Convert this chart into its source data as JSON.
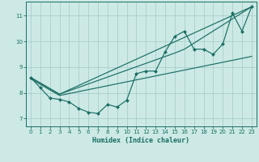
{
  "title": "",
  "xlabel": "Humidex (Indice chaleur)",
  "bg_color": "#cce9e5",
  "grid_color": "#aacfcb",
  "line_color": "#1a6e64",
  "xlim": [
    -0.5,
    23.5
  ],
  "ylim": [
    6.7,
    11.55
  ],
  "xticks": [
    0,
    1,
    2,
    3,
    4,
    5,
    6,
    7,
    8,
    9,
    10,
    11,
    12,
    13,
    14,
    15,
    16,
    17,
    18,
    19,
    20,
    21,
    22,
    23
  ],
  "yticks": [
    7,
    8,
    9,
    10,
    11
  ],
  "line_main": {
    "x": [
      0,
      1,
      2,
      3,
      4,
      5,
      6,
      7,
      8,
      9,
      10,
      11,
      12,
      13,
      14,
      15,
      16,
      17,
      18,
      19,
      20,
      21,
      22,
      23
    ],
    "y": [
      8.6,
      8.2,
      7.8,
      7.75,
      7.65,
      7.4,
      7.25,
      7.2,
      7.55,
      7.45,
      7.72,
      8.75,
      8.85,
      8.85,
      9.6,
      10.2,
      10.4,
      9.7,
      9.7,
      9.5,
      9.9,
      11.1,
      10.4,
      11.35
    ]
  },
  "line_straight1": {
    "x": [
      0,
      3,
      23
    ],
    "y": [
      8.6,
      7.95,
      11.35
    ]
  },
  "line_straight2": {
    "x": [
      0,
      3,
      15,
      16,
      23
    ],
    "y": [
      8.6,
      7.95,
      9.55,
      9.7,
      11.35
    ]
  },
  "line_straight3": {
    "x": [
      0,
      3,
      23
    ],
    "y": [
      8.55,
      7.9,
      9.42
    ]
  }
}
